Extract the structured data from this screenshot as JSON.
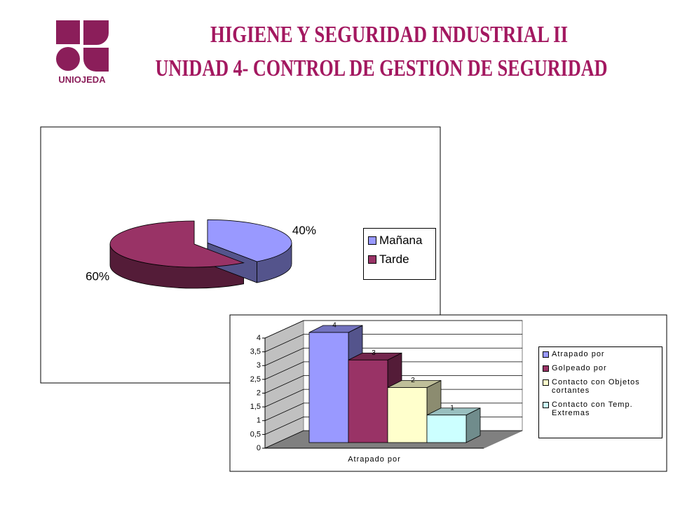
{
  "header": {
    "logo_text": "UNIOJEDA",
    "title_lines": [
      "HIGIENE Y SEGURIDAD INDUSTRIAL II",
      "UNIDAD 4- CONTROL DE GESTION DE SEGURIDAD"
    ]
  },
  "chart_data": [
    {
      "type": "pie",
      "categories": [
        "Mañana",
        "Tarde"
      ],
      "values": [
        40,
        60
      ],
      "value_labels": [
        "40%",
        "60%"
      ],
      "colors": [
        "#9999ff",
        "#993366"
      ],
      "legend": "right"
    },
    {
      "type": "bar",
      "categories": [
        "Atrapado por"
      ],
      "series": [
        {
          "name": "Atrapado por",
          "color": "#9999ff",
          "values": [
            4
          ]
        },
        {
          "name": "Golpeado por",
          "color": "#993366",
          "values": [
            3
          ]
        },
        {
          "name": "Contacto con Objetos cortantes",
          "color": "#ffffcc",
          "values": [
            2
          ]
        },
        {
          "name": "Contacto con Temp. Extremas",
          "color": "#ccffff",
          "values": [
            1
          ]
        }
      ],
      "ylim": [
        0,
        4
      ],
      "yticks": [
        0,
        {
          "value": 0.5,
          "label": "0,5"
        },
        1,
        {
          "value": 1.5,
          "label": "1,5"
        },
        2,
        {
          "value": 2.5,
          "label": "2,5"
        },
        3,
        {
          "value": 3.5,
          "label": "3,5"
        },
        4
      ],
      "grid": true,
      "legend": "right"
    }
  ]
}
